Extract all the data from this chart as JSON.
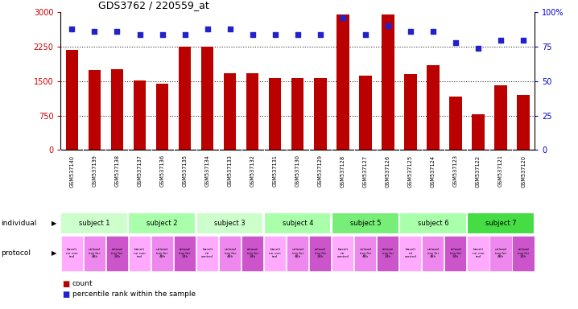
{
  "title": "GDS3762 / 220559_at",
  "samples": [
    "GSM537140",
    "GSM537139",
    "GSM537138",
    "GSM537137",
    "GSM537136",
    "GSM537135",
    "GSM537134",
    "GSM537133",
    "GSM537132",
    "GSM537131",
    "GSM537130",
    "GSM537129",
    "GSM537128",
    "GSM537127",
    "GSM537126",
    "GSM537125",
    "GSM537124",
    "GSM537123",
    "GSM537122",
    "GSM537121",
    "GSM537120"
  ],
  "bar_values": [
    2180,
    1750,
    1760,
    1520,
    1440,
    2260,
    2260,
    1680,
    1680,
    1560,
    1570,
    1560,
    2950,
    1620,
    2950,
    1650,
    1840,
    1160,
    780,
    1400,
    1190
  ],
  "percentile_values": [
    88,
    86,
    86,
    84,
    84,
    84,
    88,
    88,
    84,
    84,
    84,
    84,
    96,
    84,
    90,
    86,
    86,
    78,
    74,
    80,
    80
  ],
  "ylim_left": [
    0,
    3000
  ],
  "ylim_right": [
    0,
    100
  ],
  "yticks_left": [
    0,
    750,
    1500,
    2250,
    3000
  ],
  "yticks_right": [
    0,
    25,
    50,
    75,
    100
  ],
  "bar_color": "#bb0000",
  "dot_color": "#2222cc",
  "gridline_color": "#333333",
  "subjects": [
    {
      "label": "subject 1",
      "span": [
        0,
        3
      ],
      "color": "#ccffcc"
    },
    {
      "label": "subject 2",
      "span": [
        3,
        6
      ],
      "color": "#aaffaa"
    },
    {
      "label": "subject 3",
      "span": [
        6,
        9
      ],
      "color": "#ccffcc"
    },
    {
      "label": "subject 4",
      "span": [
        9,
        12
      ],
      "color": "#aaffaa"
    },
    {
      "label": "subject 5",
      "span": [
        12,
        15
      ],
      "color": "#77ee77"
    },
    {
      "label": "subject 6",
      "span": [
        15,
        18
      ],
      "color": "#aaffaa"
    },
    {
      "label": "subject 7",
      "span": [
        18,
        21
      ],
      "color": "#44dd44"
    }
  ],
  "protocols": [
    {
      "label": "baseli\nne con\ntrol",
      "color": "#ffaaff"
    },
    {
      "label": "unload\ning for\n48h",
      "color": "#ee88ee"
    },
    {
      "label": "reload\ning for\n24h",
      "color": "#cc55cc"
    },
    {
      "label": "baseli\nne con\ntrol",
      "color": "#ffaaff"
    },
    {
      "label": "unload\ning for\n48h",
      "color": "#ee88ee"
    },
    {
      "label": "reload\ning for\n24h",
      "color": "#cc55cc"
    },
    {
      "label": "baseli\nne\ncontrol",
      "color": "#ffaaff"
    },
    {
      "label": "unload\ning for\n48h",
      "color": "#ee88ee"
    },
    {
      "label": "reload\ning for\n24h",
      "color": "#cc55cc"
    },
    {
      "label": "baseli\nne con\ntrol",
      "color": "#ffaaff"
    },
    {
      "label": "unload\ning for\n48h",
      "color": "#ee88ee"
    },
    {
      "label": "reload\ning for\n24h",
      "color": "#cc55cc"
    },
    {
      "label": "baseli\nne\ncontrol",
      "color": "#ffaaff"
    },
    {
      "label": "unload\ning for\n48h",
      "color": "#ee88ee"
    },
    {
      "label": "reload\ning for\n24h",
      "color": "#cc55cc"
    },
    {
      "label": "baseli\nne\ncontrol",
      "color": "#ffaaff"
    },
    {
      "label": "unload\ning for\n48h",
      "color": "#ee88ee"
    },
    {
      "label": "reload\ning for\n24h",
      "color": "#cc55cc"
    },
    {
      "label": "baseli\nne con\ntrol",
      "color": "#ffaaff"
    },
    {
      "label": "unload\ning for\n48h",
      "color": "#ee88ee"
    },
    {
      "label": "reload\ning for\n24h",
      "color": "#cc55cc"
    }
  ],
  "individual_label": "individual",
  "protocol_label": "protocol",
  "legend_count_color": "#bb0000",
  "legend_dot_color": "#2222cc",
  "bg_color": "#ffffff",
  "names_bg": "#dddddd",
  "left_tick_color": "#cc0000",
  "right_tick_color": "#0000cc"
}
